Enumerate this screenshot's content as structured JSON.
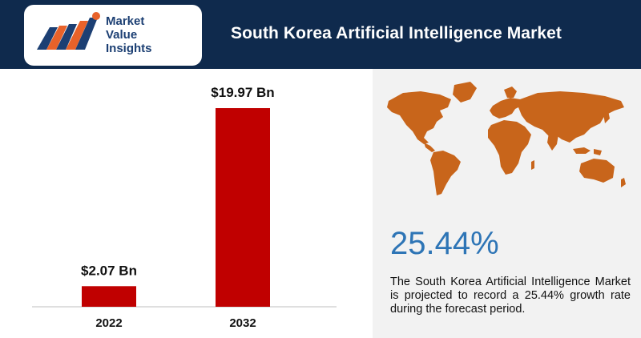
{
  "header": {
    "title": "South Korea Artificial  Intelligence  Market",
    "logo": {
      "line1": "Market",
      "line2": "Value",
      "line3": "Insights"
    }
  },
  "chart_data": {
    "type": "bar",
    "categories": [
      "2022",
      "2032"
    ],
    "values": [
      2.07,
      19.97
    ],
    "data_labels": [
      "$2.07 Bn",
      "$19.97 Bn"
    ],
    "ylim": [
      0,
      19.97
    ],
    "grid": false,
    "bar_color": "#c00000"
  },
  "stat": {
    "value": "25.44%",
    "description": "The South Korea Artificial Intelligence Market is projected to record a 25.44% growth rate during the forecast period."
  },
  "colors": {
    "header_bg": "#0f2a4d",
    "map": "#c8651b",
    "stat": "#2e75b6"
  }
}
